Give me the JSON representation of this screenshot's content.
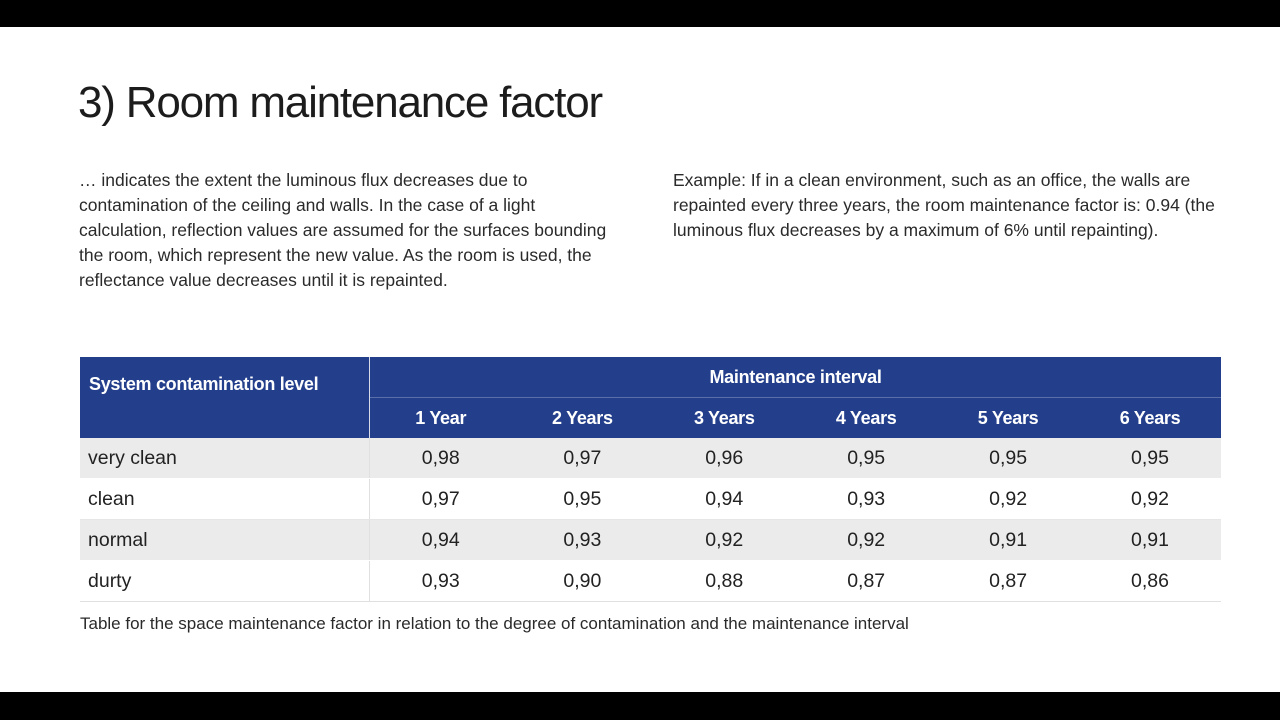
{
  "title": "3) Room maintenance factor",
  "description": "… indicates the extent the luminous flux decreases due to contamination of the ceiling and walls. In the case of a light calculation, reflection values are assumed for the surfaces bounding the room, which represent the new value. As the room is used, the reflectance value decreases until it is repainted.",
  "example": "Example: If in a clean environment, such as an office, the walls are repainted every three years, the room maintenance factor is: 0.94 (the luminous flux decreases by a maximum of 6% until repainting).",
  "table": {
    "corner_header": "System contamination level",
    "group_header": "Maintenance interval",
    "years": [
      "1 Year",
      "2 Years",
      "3 Years",
      "4 Years",
      "5 Years",
      "6 Years"
    ],
    "rows": [
      {
        "level": "very clean",
        "values": [
          "0,98",
          "0,97",
          "0,96",
          "0,95",
          "0,95",
          "0,95"
        ]
      },
      {
        "level": "clean",
        "values": [
          "0,97",
          "0,95",
          "0,94",
          "0,93",
          "0,92",
          "0,92"
        ]
      },
      {
        "level": "normal",
        "values": [
          "0,94",
          "0,93",
          "0,92",
          "0,92",
          "0,91",
          "0,91"
        ]
      },
      {
        "level": "durty",
        "values": [
          "0,93",
          "0,90",
          "0,88",
          "0,87",
          "0,87",
          "0,86"
        ]
      }
    ]
  },
  "caption": "Table for the space maintenance factor in relation to the degree of contamination and the maintenance interval"
}
